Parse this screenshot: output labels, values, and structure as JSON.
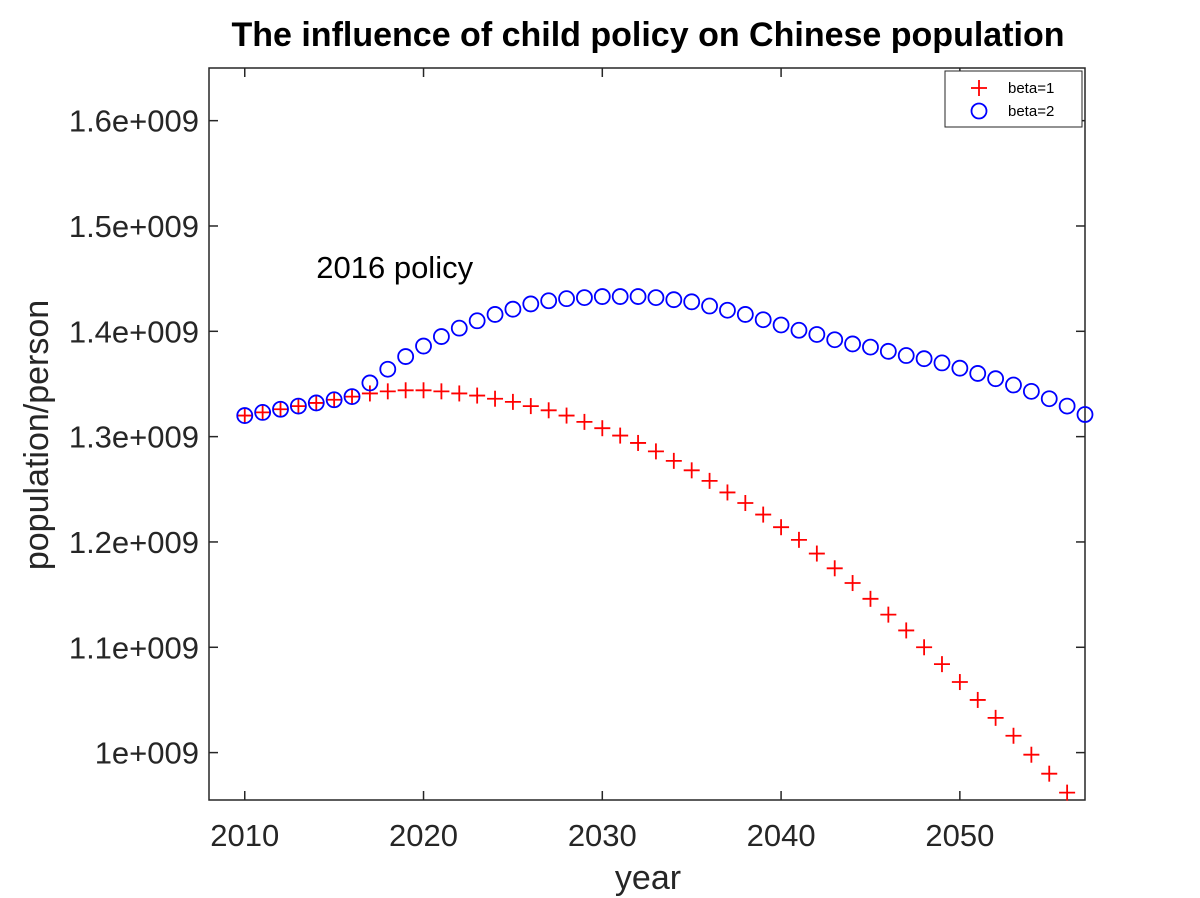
{
  "chart_data": {
    "type": "scatter",
    "title": "The influence of child policy on Chinese population",
    "xlabel": "year",
    "ylabel": "population/person",
    "xlim": [
      2008,
      2057
    ],
    "ylim": [
      955000000,
      1650000000
    ],
    "x_ticks": [
      2010,
      2020,
      2030,
      2040,
      2050
    ],
    "x_tick_labels": [
      "2010",
      "2020",
      "2030",
      "2040",
      "2050"
    ],
    "y_ticks": [
      1000000000,
      1100000000,
      1200000000,
      1300000000,
      1400000000,
      1500000000,
      1600000000
    ],
    "y_tick_labels": [
      "1e+009",
      "1.1e+009",
      "1.2e+009",
      "1.3e+009",
      "1.4e+009",
      "1.5e+009",
      "1.6e+009"
    ],
    "grid": false,
    "legend_position": "top-right",
    "annotations": [
      {
        "text": "2016 policy",
        "x": 2014,
        "y": 1460000000
      }
    ],
    "series": [
      {
        "name": "beta=1",
        "marker": "plus",
        "color": "#ff0000",
        "x": [
          2010,
          2011,
          2012,
          2013,
          2014,
          2015,
          2016,
          2017,
          2018,
          2019,
          2020,
          2021,
          2022,
          2023,
          2024,
          2025,
          2026,
          2027,
          2028,
          2029,
          2030,
          2031,
          2032,
          2033,
          2034,
          2035,
          2036,
          2037,
          2038,
          2039,
          2040,
          2041,
          2042,
          2043,
          2044,
          2045,
          2046,
          2047,
          2048,
          2049,
          2050,
          2051,
          2052,
          2053,
          2054,
          2055,
          2056
        ],
        "values": [
          1320000000,
          1323000000,
          1326000000,
          1329000000,
          1332000000,
          1335000000,
          1338000000,
          1341000000,
          1343000000,
          1344000000,
          1344000000,
          1343000000,
          1341000000,
          1339000000,
          1336000000,
          1333000000,
          1329000000,
          1325000000,
          1320000000,
          1314000000,
          1308000000,
          1301000000,
          1294000000,
          1286000000,
          1277000000,
          1268000000,
          1258000000,
          1247000000,
          1237000000,
          1226000000,
          1214000000,
          1202000000,
          1189000000,
          1175000000,
          1161000000,
          1146000000,
          1131000000,
          1116000000,
          1100000000,
          1084000000,
          1067000000,
          1050000000,
          1033000000,
          1016000000,
          998000000,
          980000000,
          962000000
        ]
      },
      {
        "name": "beta=2",
        "marker": "circle",
        "color": "#0000ff",
        "x": [
          2010,
          2011,
          2012,
          2013,
          2014,
          2015,
          2016,
          2017,
          2018,
          2019,
          2020,
          2021,
          2022,
          2023,
          2024,
          2025,
          2026,
          2027,
          2028,
          2029,
          2030,
          2031,
          2032,
          2033,
          2034,
          2035,
          2036,
          2037,
          2038,
          2039,
          2040,
          2041,
          2042,
          2043,
          2044,
          2045,
          2046,
          2047,
          2048,
          2049,
          2050,
          2051,
          2052,
          2053,
          2054,
          2055,
          2056,
          2057
        ],
        "values": [
          1320000000,
          1323000000,
          1326000000,
          1329000000,
          1332000000,
          1335000000,
          1338000000,
          1351000000,
          1364000000,
          1376000000,
          1386000000,
          1395000000,
          1403000000,
          1410000000,
          1416000000,
          1421000000,
          1426000000,
          1429000000,
          1431000000,
          1432000000,
          1433000000,
          1433000000,
          1433000000,
          1432000000,
          1430000000,
          1428000000,
          1424000000,
          1420000000,
          1416000000,
          1411000000,
          1406000000,
          1401000000,
          1397000000,
          1392000000,
          1388000000,
          1385000000,
          1381000000,
          1377000000,
          1374000000,
          1370000000,
          1365000000,
          1360000000,
          1355000000,
          1349000000,
          1343000000,
          1336000000,
          1329000000,
          1321000000
        ]
      }
    ]
  }
}
